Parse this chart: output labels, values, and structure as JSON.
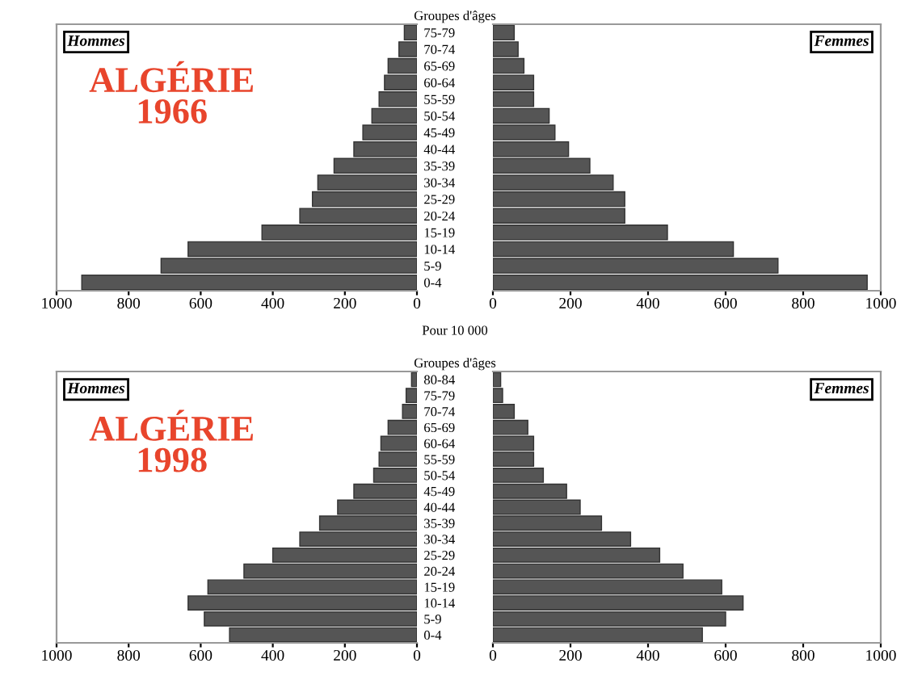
{
  "chart_data": [
    {
      "type": "bar",
      "orientation": "horizontal",
      "title": "Groupes d'âges",
      "xlabel": "Pour 10 000",
      "annotations": [
        "Hommes",
        "ALGÉRIE\n1966"
      ],
      "categories": [
        "75-79",
        "70-74",
        "65-69",
        "60-64",
        "55-59",
        "50-54",
        "45-49",
        "40-44",
        "35-39",
        "30-34",
        "25-29",
        "20-24",
        "15-19",
        "10-14",
        "5-9",
        "0-4"
      ],
      "series": [
        {
          "color": "#555555",
          "values": [
            35,
            50,
            80,
            90,
            105,
            125,
            150,
            175,
            230,
            275,
            290,
            325,
            430,
            635,
            710,
            930
          ]
        }
      ],
      "xlim": [
        1000,
        0
      ],
      "xticks": [
        1000,
        800,
        600,
        400,
        200,
        0
      ],
      "grid": false
    },
    {
      "type": "bar",
      "orientation": "horizontal",
      "annotations": [
        "Femmes"
      ],
      "tick_labels": "x",
      "series": [
        {
          "color": "#555555",
          "values": [
            55,
            65,
            80,
            105,
            105,
            145,
            160,
            195,
            250,
            310,
            340,
            340,
            450,
            620,
            735,
            965
          ]
        }
      ],
      "xlim": [
        0,
        1000
      ],
      "xticks": [
        0,
        200,
        400,
        600,
        800,
        1000
      ],
      "grid": false
    },
    {
      "type": "bar",
      "orientation": "horizontal",
      "title": "Groupes d'âges",
      "annotations": [
        "Hommes",
        "ALGÉRIE\n1998"
      ],
      "categories": [
        "80-84",
        "75-79",
        "70-74",
        "65-69",
        "60-64",
        "55-59",
        "50-54",
        "45-49",
        "40-44",
        "35-39",
        "30-34",
        "25-29",
        "20-24",
        "15-19",
        "10-14",
        "5-9",
        "0-4"
      ],
      "series": [
        {
          "color": "#555555",
          "values": [
            15,
            30,
            40,
            80,
            100,
            105,
            120,
            175,
            220,
            270,
            325,
            400,
            480,
            580,
            635,
            590,
            520
          ]
        }
      ],
      "xlim": [
        1000,
        0
      ],
      "xticks": [
        1000,
        800,
        600,
        400,
        200,
        0
      ],
      "grid": false
    },
    {
      "type": "bar",
      "orientation": "horizontal",
      "annotations": [
        "Femmes"
      ],
      "tick_labels": "x",
      "series": [
        {
          "color": "#555555",
          "values": [
            20,
            25,
            55,
            90,
            105,
            105,
            130,
            190,
            225,
            280,
            355,
            430,
            490,
            590,
            645,
            600,
            540
          ]
        }
      ],
      "xlim": [
        0,
        1000
      ],
      "xticks": [
        0,
        200,
        400,
        600,
        800,
        1000
      ],
      "grid": false
    }
  ]
}
